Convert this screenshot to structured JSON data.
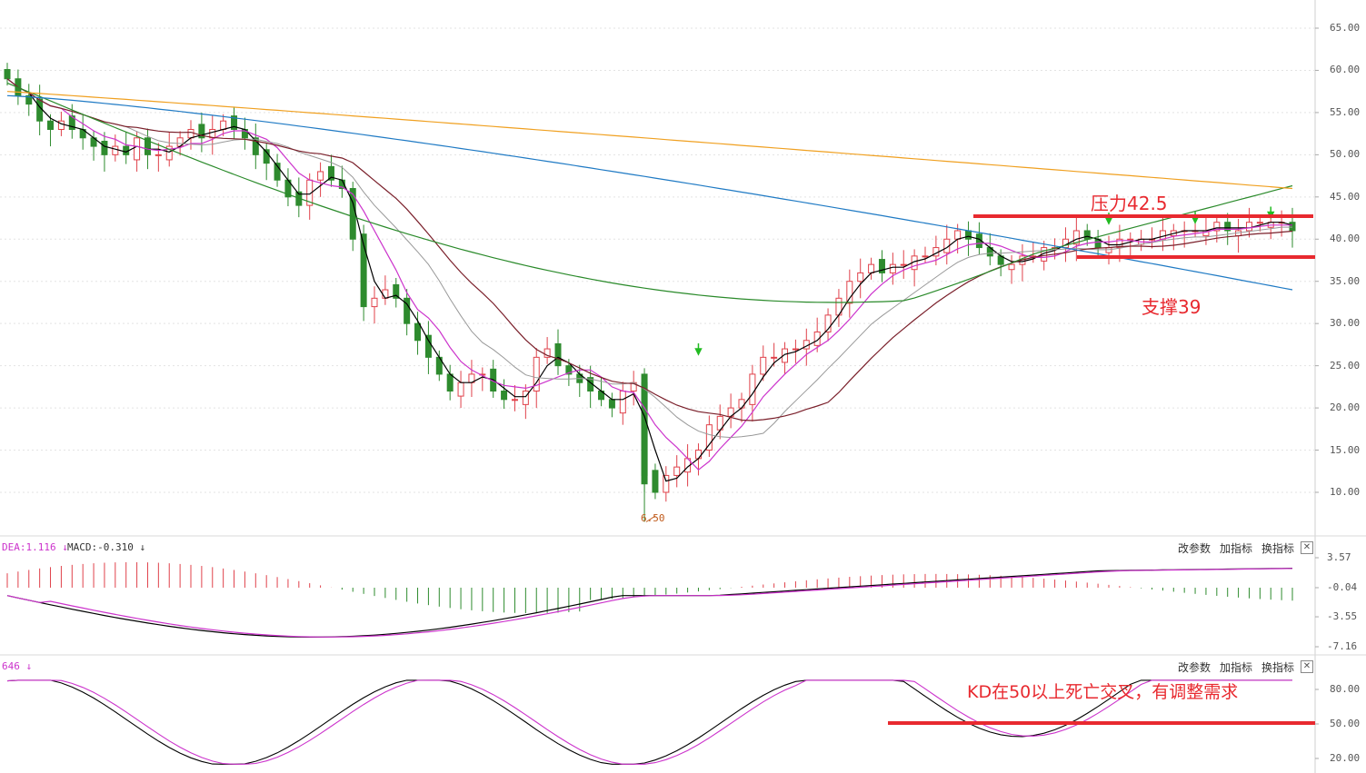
{
  "main_panel": {
    "y_ticks": [
      "65.00",
      "60.00",
      "55.00",
      "50.00",
      "45.00",
      "40.00",
      "35.00",
      "30.00",
      "25.00",
      "20.00",
      "15.00",
      "10.00"
    ],
    "low_label": "6.50",
    "annotations": {
      "resistance": "压力42.5",
      "support": "支撑39"
    }
  },
  "macd_panel": {
    "indicator_text": "DEA:1.116",
    "macd_text": "MACD:-0.310",
    "y_ticks": [
      "3.57",
      "-0.04",
      "-3.55",
      "-7.16"
    ],
    "buttons": {
      "params": "改参数",
      "add": "加指标",
      "switch": "换指标",
      "close": "✕"
    }
  },
  "kd_panel": {
    "indicator_text": "646",
    "y_ticks": [
      "80.00",
      "50.00",
      "20.00"
    ],
    "annotation": "KD在50以上死亡交叉，有调整需求",
    "buttons": {
      "params": "改参数",
      "add": "加指标",
      "switch": "换指标",
      "close": "✕"
    }
  },
  "colors": {
    "up": "#e0414a",
    "down": "#2e8b2e",
    "ma5": "#000000",
    "ma10": "#cc33cc",
    "ma20": "#999999",
    "ma30": "#7a1f2a",
    "ma60": "#2a8a2a",
    "ma120": "#1f7ac4",
    "ma250": "#f0a020",
    "annotation": "#e8292f"
  },
  "chart_data": [
    {
      "type": "candlestick",
      "panel": "price",
      "ylim": [
        5,
        67
      ],
      "y_ticks": [
        65,
        60,
        55,
        50,
        45,
        40,
        35,
        30,
        25,
        20,
        15,
        10
      ],
      "annotated_low": 6.5,
      "resistance_level": 42.5,
      "support_level": 39,
      "moving_averages": [
        "MA5",
        "MA10",
        "MA20",
        "MA30",
        "MA60",
        "MA120",
        "MA250"
      ],
      "note": "OHLC values estimated from the gridlines; about 120 daily candles"
    },
    {
      "type": "line",
      "panel": "MACD",
      "ylim": [
        -7.16,
        3.57
      ],
      "y_ticks": [
        3.57,
        -0.04,
        -3.55,
        -7.16
      ],
      "DEA_last": 1.116,
      "MACD_last": -0.31
    },
    {
      "type": "line",
      "panel": "KD",
      "ylim": [
        10,
        100
      ],
      "y_ticks": [
        80,
        50,
        20
      ],
      "reference_level": 50
    }
  ]
}
